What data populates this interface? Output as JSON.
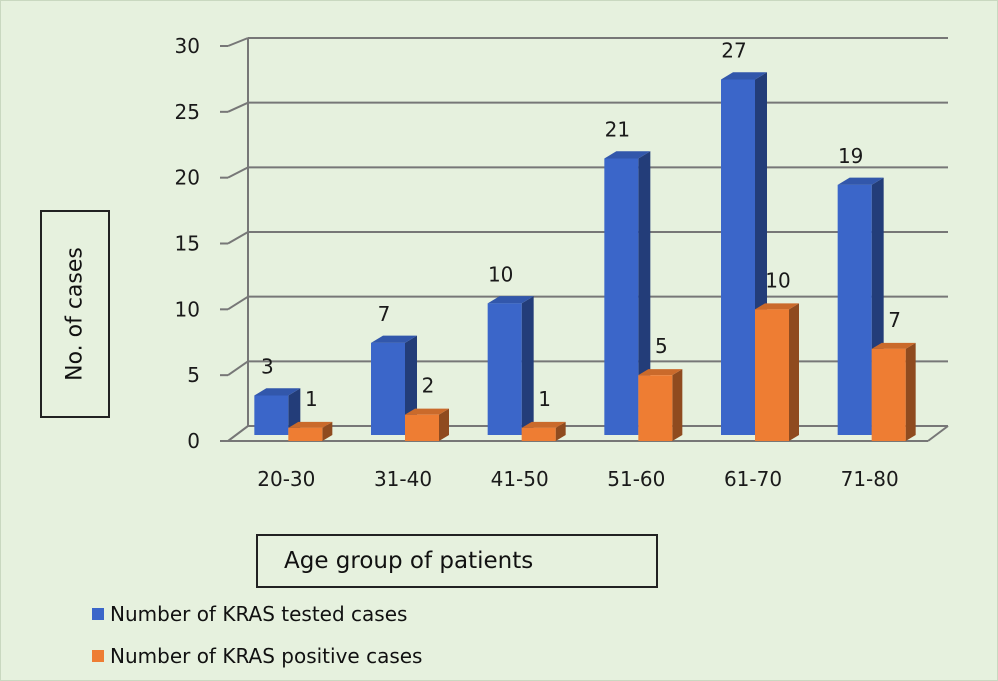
{
  "chart_data": {
    "type": "bar",
    "categories": [
      "20-30",
      "31-40",
      "41-50",
      "51-60",
      "61-70",
      "71-80"
    ],
    "series": [
      {
        "name": "Number of KRAS tested cases",
        "values": [
          3,
          7,
          10,
          21,
          27,
          19
        ],
        "color": "#3b66c9"
      },
      {
        "name": "Number of KRAS positive cases",
        "values": [
          1,
          2,
          1,
          5,
          10,
          7
        ],
        "color": "#ee7d33"
      }
    ],
    "yticks": [
      0,
      5,
      10,
      15,
      20,
      25,
      30
    ],
    "ylim": [
      0,
      30
    ],
    "xlabel": "Age group of patients",
    "ylabel": "No. of cases",
    "grid": true,
    "legend_position": "bottom-left",
    "style": "3d-clustered-column"
  }
}
